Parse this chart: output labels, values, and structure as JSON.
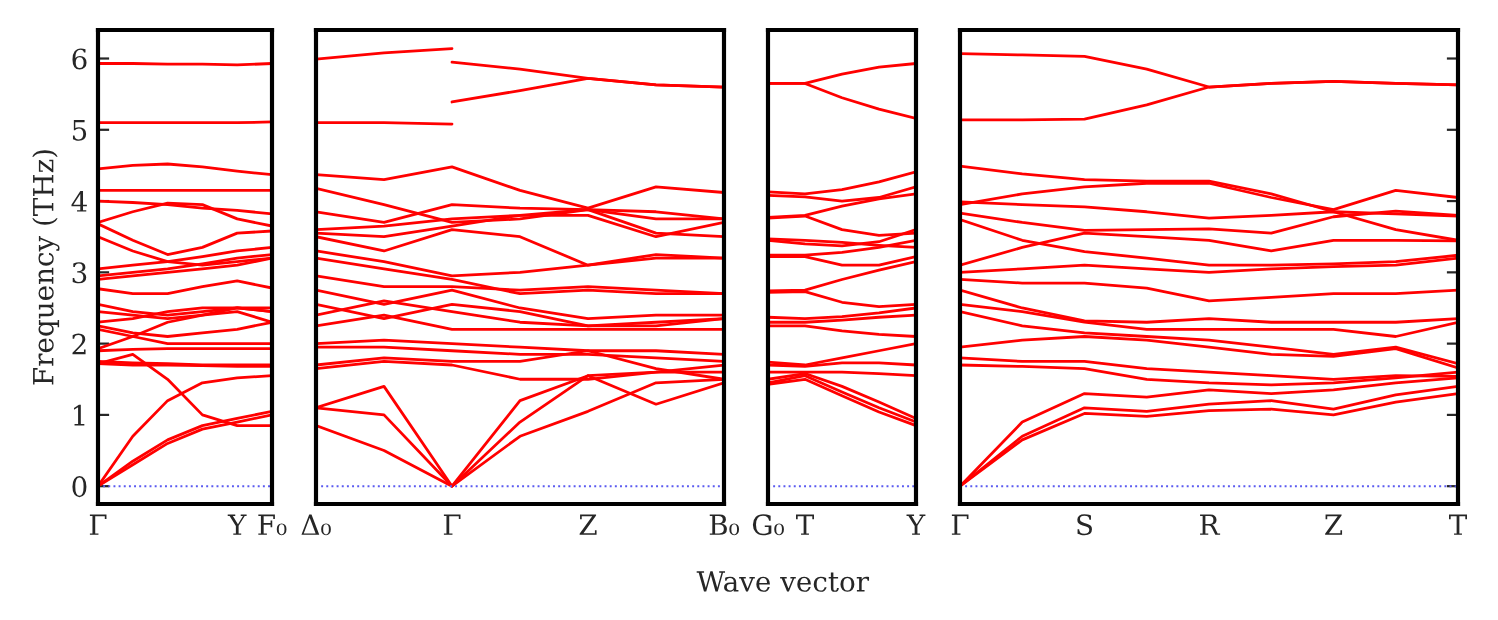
{
  "chart_data": [
    {
      "type": "line",
      "ylabel": "Frequency (THz)",
      "categories": [
        "Γ",
        null,
        null,
        null,
        "Y",
        "F₀"
      ],
      "ylim": [
        -0.25,
        6.4
      ],
      "yticks": [
        0,
        1,
        2,
        3,
        4,
        5,
        6
      ],
      "line_style": "solid",
      "ref_lines": [
        {
          "axis": "y",
          "value": 0,
          "color": "#5a5af0",
          "line_style": "dotted"
        }
      ],
      "series": [
        {
          "color": "#ff0000",
          "values": [
            5.93,
            5.93,
            5.92,
            5.92,
            5.91,
            5.93
          ]
        },
        {
          "color": "#ff0000",
          "values": [
            5.1,
            5.1,
            5.1,
            5.1,
            5.1,
            5.11
          ]
        },
        {
          "color": "#ff0000",
          "values": [
            4.45,
            4.5,
            4.52,
            4.48,
            4.42,
            4.37
          ]
        },
        {
          "color": "#ff0000",
          "values": [
            4.15,
            4.15,
            4.15,
            4.15,
            4.15,
            4.15
          ]
        },
        {
          "color": "#ff0000",
          "values": [
            4.0,
            3.98,
            3.95,
            3.9,
            3.87,
            3.82
          ]
        },
        {
          "color": "#ff0000",
          "values": [
            3.7,
            3.85,
            3.97,
            3.95,
            3.75,
            3.65
          ]
        },
        {
          "color": "#ff0000",
          "values": [
            3.68,
            3.45,
            3.25,
            3.35,
            3.55,
            3.58
          ]
        },
        {
          "color": "#ff0000",
          "values": [
            3.5,
            3.3,
            3.15,
            3.1,
            3.15,
            3.2
          ]
        },
        {
          "color": "#ff0000",
          "values": [
            3.05,
            3.1,
            3.15,
            3.22,
            3.3,
            3.35
          ]
        },
        {
          "color": "#ff0000",
          "values": [
            2.95,
            3.0,
            3.05,
            3.12,
            3.2,
            3.25
          ]
        },
        {
          "color": "#ff0000",
          "values": [
            2.9,
            2.95,
            3.0,
            3.05,
            3.1,
            3.2
          ]
        },
        {
          "color": "#ff0000",
          "values": [
            2.77,
            2.7,
            2.7,
            2.8,
            2.88,
            2.78
          ]
        },
        {
          "color": "#ff0000",
          "values": [
            2.55,
            2.45,
            2.4,
            2.45,
            2.5,
            2.5
          ]
        },
        {
          "color": "#ff0000",
          "values": [
            2.45,
            2.4,
            2.35,
            2.4,
            2.45,
            2.3
          ]
        },
        {
          "color": "#ff0000",
          "values": [
            2.3,
            2.35,
            2.45,
            2.5,
            2.5,
            2.45
          ]
        },
        {
          "color": "#ff0000",
          "values": [
            2.25,
            2.15,
            2.1,
            2.15,
            2.2,
            2.3
          ]
        },
        {
          "color": "#ff0000",
          "values": [
            2.2,
            2.1,
            2.0,
            2.0,
            2.0,
            2.0
          ]
        },
        {
          "color": "#ff0000",
          "values": [
            1.93,
            2.1,
            2.3,
            2.4,
            2.5,
            2.45
          ]
        },
        {
          "color": "#ff0000",
          "values": [
            1.9,
            1.92,
            1.93,
            1.93,
            1.93,
            1.93
          ]
        },
        {
          "color": "#ff0000",
          "values": [
            1.75,
            1.73,
            1.72,
            1.7,
            1.7,
            1.7
          ]
        },
        {
          "color": "#ff0000",
          "values": [
            1.72,
            1.7,
            1.7,
            1.69,
            1.68,
            1.68
          ]
        },
        {
          "color": "#ff0000",
          "values": [
            1.72,
            1.85,
            1.5,
            1.0,
            0.85,
            0.85
          ]
        },
        {
          "color": "#ff0000",
          "values": [
            0,
            0.7,
            1.2,
            1.45,
            1.52,
            1.55
          ]
        },
        {
          "color": "#ff0000",
          "values": [
            0,
            0.35,
            0.65,
            0.85,
            0.95,
            1.05
          ]
        },
        {
          "color": "#ff0000",
          "values": [
            0,
            0.3,
            0.6,
            0.8,
            0.9,
            1.0
          ]
        }
      ]
    },
    {
      "type": "line",
      "categories": [
        "Δ₀",
        null,
        "Γ",
        null,
        "Z",
        null,
        "B₀"
      ],
      "ylim": [
        -0.25,
        6.4
      ],
      "tick_labels": "x",
      "line_style": "solid",
      "ref_lines": [
        {
          "axis": "y",
          "value": 0,
          "color": "#5a5af0",
          "line_style": "dotted"
        }
      ],
      "series": [
        {
          "color": "#ff0000",
          "values": [
            5.99,
            6.08,
            6.14,
            null,
            null,
            null,
            null
          ]
        },
        {
          "color": "#ff0000",
          "values": [
            null,
            null,
            5.95,
            5.85,
            5.72,
            5.63,
            5.6
          ]
        },
        {
          "color": "#ff0000",
          "values": [
            null,
            null,
            5.39,
            5.55,
            5.72,
            5.63,
            5.6
          ]
        },
        {
          "color": "#ff0000",
          "values": [
            5.1,
            5.1,
            5.08,
            null,
            null,
            null,
            null
          ]
        },
        {
          "color": "#ff0000",
          "values": [
            4.37,
            4.3,
            4.48,
            4.15,
            3.9,
            4.2,
            4.12
          ]
        },
        {
          "color": "#ff0000",
          "values": [
            4.18,
            3.95,
            3.7,
            3.75,
            3.88,
            3.55,
            3.5
          ]
        },
        {
          "color": "#ff0000",
          "values": [
            3.85,
            3.7,
            3.95,
            3.9,
            3.88,
            3.75,
            3.75
          ]
        },
        {
          "color": "#ff0000",
          "values": [
            3.6,
            3.65,
            3.75,
            3.8,
            3.88,
            3.85,
            3.75
          ]
        },
        {
          "color": "#ff0000",
          "values": [
            3.55,
            3.5,
            3.65,
            3.8,
            3.8,
            3.5,
            3.7
          ]
        },
        {
          "color": "#ff0000",
          "values": [
            3.5,
            3.3,
            3.6,
            3.5,
            3.1,
            3.25,
            3.2
          ]
        },
        {
          "color": "#ff0000",
          "values": [
            3.3,
            3.15,
            2.95,
            3.0,
            3.1,
            3.2,
            3.2
          ]
        },
        {
          "color": "#ff0000",
          "values": [
            3.2,
            3.05,
            2.9,
            2.7,
            2.75,
            2.7,
            2.7
          ]
        },
        {
          "color": "#ff0000",
          "values": [
            2.95,
            2.8,
            2.8,
            2.75,
            2.8,
            2.75,
            2.7
          ]
        },
        {
          "color": "#ff0000",
          "values": [
            2.75,
            2.55,
            2.75,
            2.5,
            2.35,
            2.4,
            2.4
          ]
        },
        {
          "color": "#ff0000",
          "values": [
            2.55,
            2.35,
            2.55,
            2.45,
            2.25,
            2.3,
            2.35
          ]
        },
        {
          "color": "#ff0000",
          "values": [
            2.4,
            2.6,
            2.45,
            2.3,
            2.25,
            2.25,
            2.35
          ]
        },
        {
          "color": "#ff0000",
          "values": [
            2.25,
            2.4,
            2.2,
            2.2,
            2.2,
            2.2,
            2.2
          ]
        },
        {
          "color": "#ff0000",
          "values": [
            2.0,
            2.05,
            2.0,
            1.95,
            1.9,
            1.9,
            1.85
          ]
        },
        {
          "color": "#ff0000",
          "values": [
            1.95,
            1.95,
            1.9,
            1.85,
            1.85,
            1.8,
            1.75
          ]
        },
        {
          "color": "#ff0000",
          "values": [
            1.7,
            1.8,
            1.75,
            1.75,
            1.9,
            1.65,
            1.5
          ]
        },
        {
          "color": "#ff0000",
          "values": [
            1.65,
            1.75,
            1.7,
            1.5,
            1.5,
            1.6,
            1.6
          ]
        },
        {
          "color": "#ff0000",
          "values": [
            1.1,
            1.4,
            0,
            1.2,
            1.55,
            1.6,
            1.7
          ]
        },
        {
          "color": "#ff0000",
          "values": [
            1.1,
            1.0,
            0,
            0.9,
            1.55,
            1.15,
            1.45
          ]
        },
        {
          "color": "#ff0000",
          "values": [
            0.85,
            0.5,
            0,
            0.7,
            1.05,
            1.45,
            1.5
          ]
        }
      ]
    },
    {
      "type": "line",
      "xlabel": "Wave vector",
      "categories": [
        "G₀",
        "T",
        null,
        null,
        "Y"
      ],
      "ylim": [
        -0.25,
        6.4
      ],
      "tick_labels": "x",
      "line_style": "solid",
      "ref_lines": [
        {
          "axis": "y",
          "value": 0,
          "color": "#5a5af0",
          "line_style": "dotted"
        }
      ],
      "series": [
        {
          "color": "#ff0000",
          "values": [
            5.65,
            5.65,
            5.78,
            5.88,
            5.93
          ]
        },
        {
          "color": "#ff0000",
          "values": [
            5.65,
            5.65,
            5.45,
            5.29,
            5.16
          ]
        },
        {
          "color": "#ff0000",
          "values": [
            4.13,
            4.1,
            4.16,
            4.27,
            4.41
          ]
        },
        {
          "color": "#ff0000",
          "values": [
            4.08,
            4.06,
            4.0,
            4.05,
            4.2
          ]
        },
        {
          "color": "#ff0000",
          "values": [
            3.77,
            3.8,
            3.93,
            4.03,
            4.1
          ]
        },
        {
          "color": "#ff0000",
          "values": [
            3.76,
            3.79,
            3.6,
            3.52,
            3.55
          ]
        },
        {
          "color": "#ff0000",
          "values": [
            3.47,
            3.45,
            3.42,
            3.38,
            3.35
          ]
        },
        {
          "color": "#ff0000",
          "values": [
            3.45,
            3.4,
            3.37,
            3.43,
            3.6
          ]
        },
        {
          "color": "#ff0000",
          "values": [
            3.24,
            3.24,
            3.28,
            3.35,
            3.45
          ]
        },
        {
          "color": "#ff0000",
          "values": [
            3.22,
            3.22,
            3.1,
            3.1,
            3.22
          ]
        },
        {
          "color": "#ff0000",
          "values": [
            2.74,
            2.75,
            2.9,
            3.03,
            3.15
          ]
        },
        {
          "color": "#ff0000",
          "values": [
            2.72,
            2.73,
            2.58,
            2.52,
            2.55
          ]
        },
        {
          "color": "#ff0000",
          "values": [
            2.37,
            2.35,
            2.38,
            2.43,
            2.5
          ]
        },
        {
          "color": "#ff0000",
          "values": [
            2.3,
            2.3,
            2.33,
            2.37,
            2.4
          ]
        },
        {
          "color": "#ff0000",
          "values": [
            2.25,
            2.25,
            2.18,
            2.13,
            2.1
          ]
        },
        {
          "color": "#ff0000",
          "values": [
            1.74,
            1.7,
            1.8,
            1.9,
            2.0
          ]
        },
        {
          "color": "#ff0000",
          "values": [
            1.7,
            1.68,
            1.73,
            1.73,
            1.7
          ]
        },
        {
          "color": "#ff0000",
          "values": [
            1.6,
            1.6,
            1.6,
            1.58,
            1.55
          ]
        },
        {
          "color": "#ff0000",
          "values": [
            1.5,
            1.58,
            1.4,
            1.18,
            0.95
          ]
        },
        {
          "color": "#ff0000",
          "values": [
            1.45,
            1.55,
            1.32,
            1.1,
            0.9
          ]
        },
        {
          "color": "#ff0000",
          "values": [
            1.43,
            1.5,
            1.27,
            1.04,
            0.85
          ]
        }
      ]
    },
    {
      "type": "line",
      "categories": [
        "Γ",
        null,
        "S",
        null,
        "R",
        null,
        "Z",
        null,
        "T"
      ],
      "ylim": [
        -0.25,
        6.4
      ],
      "yticks": [
        {
          "value": 0,
          "label": null
        },
        {
          "value": 1,
          "label": null
        },
        {
          "value": 2,
          "label": null
        },
        {
          "value": 3,
          "label": null
        },
        {
          "value": 4,
          "label": null
        },
        {
          "value": 5,
          "label": null
        },
        {
          "value": 6,
          "label": null
        }
      ],
      "tick_labels": "x",
      "line_style": "solid",
      "ref_lines": [
        {
          "axis": "y",
          "value": 0,
          "color": "#5a5af0",
          "line_style": "dotted"
        }
      ],
      "series": [
        {
          "color": "#ff0000",
          "values": [
            6.07,
            6.05,
            6.03,
            5.85,
            5.6,
            5.65,
            5.68,
            5.65,
            5.63
          ]
        },
        {
          "color": "#ff0000",
          "values": [
            5.14,
            5.14,
            5.15,
            5.35,
            5.6,
            5.65,
            5.68,
            5.65,
            5.63
          ]
        },
        {
          "color": "#ff0000",
          "values": [
            4.49,
            4.38,
            4.3,
            4.28,
            4.28,
            4.1,
            3.85,
            3.6,
            3.45
          ]
        },
        {
          "color": "#ff0000",
          "values": [
            3.95,
            4.1,
            4.2,
            4.25,
            4.25,
            4.05,
            3.88,
            4.15,
            4.05
          ]
        },
        {
          "color": "#ff0000",
          "values": [
            3.99,
            3.95,
            3.92,
            3.85,
            3.76,
            3.8,
            3.85,
            3.82,
            3.79
          ]
        },
        {
          "color": "#ff0000",
          "values": [
            3.83,
            3.7,
            3.59,
            3.6,
            3.61,
            3.55,
            3.78,
            3.86,
            3.8
          ]
        },
        {
          "color": "#ff0000",
          "values": [
            3.74,
            3.45,
            3.29,
            3.2,
            3.1,
            3.1,
            3.12,
            3.15,
            3.24
          ]
        },
        {
          "color": "#ff0000",
          "values": [
            3.1,
            3.35,
            3.55,
            3.5,
            3.45,
            3.3,
            3.45,
            3.45,
            3.44
          ]
        },
        {
          "color": "#ff0000",
          "values": [
            3.0,
            3.05,
            3.1,
            3.05,
            3.0,
            3.05,
            3.08,
            3.1,
            3.2
          ]
        },
        {
          "color": "#ff0000",
          "values": [
            2.9,
            2.85,
            2.85,
            2.78,
            2.6,
            2.65,
            2.7,
            2.7,
            2.75
          ]
        },
        {
          "color": "#ff0000",
          "values": [
            2.75,
            2.5,
            2.32,
            2.3,
            2.35,
            2.3,
            2.3,
            2.3,
            2.35
          ]
        },
        {
          "color": "#ff0000",
          "values": [
            2.55,
            2.45,
            2.3,
            2.2,
            2.2,
            2.2,
            2.2,
            2.1,
            2.3
          ]
        },
        {
          "color": "#ff0000",
          "values": [
            2.45,
            2.25,
            2.15,
            2.1,
            2.05,
            1.95,
            1.85,
            1.95,
            1.72
          ]
        },
        {
          "color": "#ff0000",
          "values": [
            1.95,
            2.05,
            2.1,
            2.05,
            1.95,
            1.85,
            1.82,
            1.93,
            1.66
          ]
        },
        {
          "color": "#ff0000",
          "values": [
            1.8,
            1.75,
            1.75,
            1.65,
            1.6,
            1.55,
            1.5,
            1.55,
            1.54
          ]
        },
        {
          "color": "#ff0000",
          "values": [
            1.7,
            1.68,
            1.65,
            1.5,
            1.45,
            1.42,
            1.45,
            1.52,
            1.6
          ]
        },
        {
          "color": "#ff0000",
          "values": [
            0,
            0.9,
            1.3,
            1.25,
            1.35,
            1.3,
            1.35,
            1.45,
            1.52
          ]
        },
        {
          "color": "#ff0000",
          "values": [
            0,
            0.7,
            1.1,
            1.05,
            1.15,
            1.2,
            1.08,
            1.28,
            1.4
          ]
        },
        {
          "color": "#ff0000",
          "values": [
            0,
            0.65,
            1.02,
            0.98,
            1.06,
            1.08,
            1.0,
            1.18,
            1.3
          ]
        }
      ]
    }
  ]
}
